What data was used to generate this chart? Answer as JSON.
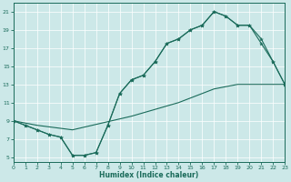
{
  "bg_color": "#cce8e8",
  "line_color": "#1a6b5a",
  "xlabel": "Humidex (Indice chaleur)",
  "xlim": [
    0,
    23
  ],
  "ylim": [
    4.5,
    22
  ],
  "xticks": [
    0,
    1,
    2,
    3,
    4,
    5,
    6,
    7,
    8,
    9,
    10,
    11,
    12,
    13,
    14,
    15,
    16,
    17,
    18,
    19,
    20,
    21,
    22,
    23
  ],
  "yticks": [
    5,
    7,
    9,
    11,
    13,
    15,
    17,
    19,
    21
  ],
  "curve1_x": [
    0,
    1,
    2,
    3,
    4,
    5,
    6,
    7,
    8,
    9,
    10,
    11,
    12,
    13,
    14,
    15,
    16,
    17,
    18,
    19,
    20,
    21,
    22,
    23
  ],
  "curve1_y": [
    9,
    8.5,
    8.0,
    7.5,
    7.2,
    5.2,
    5.2,
    5.5,
    8.5,
    12.0,
    13.5,
    14.0,
    15.5,
    17.5,
    18.0,
    19.0,
    19.5,
    21.0,
    20.5,
    19.5,
    19.5,
    18.0,
    15.5,
    13.0
  ],
  "curve2_x": [
    0,
    1,
    2,
    3,
    4,
    5,
    6,
    7,
    8,
    9,
    10,
    11,
    12,
    13,
    14,
    15,
    16,
    17,
    18,
    19,
    20,
    21,
    22,
    23
  ],
  "curve2_y": [
    9,
    8.5,
    8.0,
    7.5,
    7.2,
    5.2,
    5.2,
    5.5,
    8.5,
    12.0,
    13.5,
    14.0,
    15.5,
    17.5,
    18.0,
    19.0,
    19.5,
    21.0,
    20.5,
    19.5,
    19.5,
    17.5,
    15.5,
    13.0
  ],
  "diag_x": [
    0,
    2,
    5,
    10,
    14,
    17,
    19,
    22,
    23
  ],
  "diag_y": [
    9,
    8.5,
    8.0,
    9.5,
    11.0,
    12.5,
    13.0,
    13.0,
    13.0
  ]
}
